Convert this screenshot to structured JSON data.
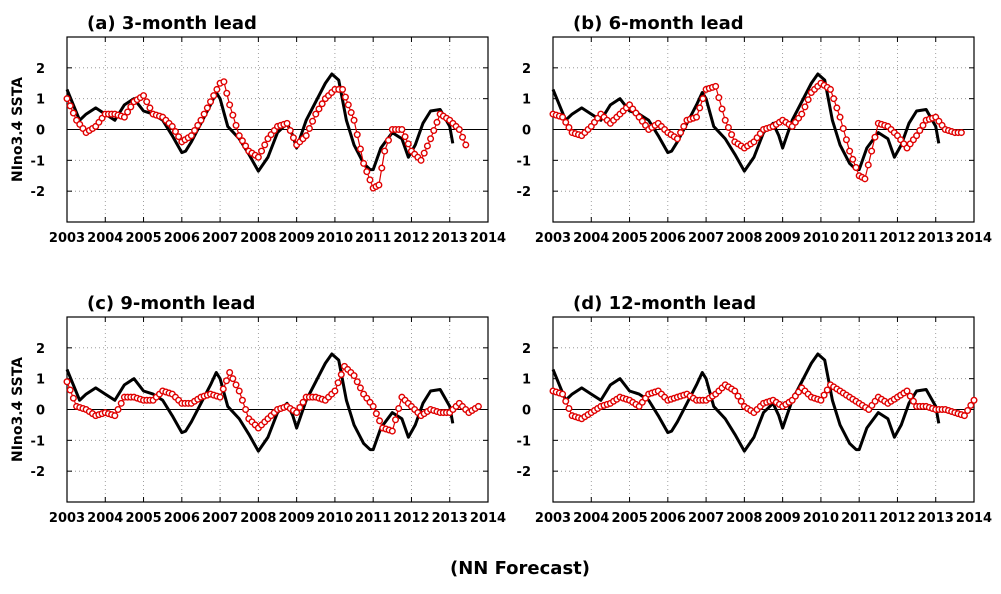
{
  "footer": "(NN Forecast)",
  "colors": {
    "observed": "#000000",
    "forecast": "#e00000",
    "grid": "#8a8a8a"
  },
  "chart_data": [
    {
      "type": "line",
      "title": "(a) 3-month lead",
      "ylabel": "NIno3.4 SSTA",
      "xlim": [
        2003,
        2014
      ],
      "ylim": [
        -3,
        3
      ],
      "xticks": [
        "2003",
        "2004",
        "2005",
        "2006",
        "2007",
        "2008",
        "2009",
        "2010",
        "2011",
        "2012",
        "2013",
        "2014"
      ],
      "yticks": [
        "-2",
        "-1",
        "0",
        "1",
        "2"
      ],
      "grid": true,
      "series": [
        {
          "style": "thick-black-line",
          "x": [
            2003.0,
            2003.33,
            2003.5,
            2003.75,
            2004.0,
            2004.25,
            2004.5,
            2004.75,
            2005.0,
            2005.25,
            2005.5,
            2005.75,
            2006.0,
            2006.1,
            2006.25,
            2006.5,
            2006.75,
            2006.9,
            2007.0,
            2007.2,
            2007.5,
            2007.75,
            2008.0,
            2008.25,
            2008.5,
            2008.75,
            2008.9,
            2009.0,
            2009.25,
            2009.5,
            2009.75,
            2009.92,
            2010.1,
            2010.3,
            2010.5,
            2010.75,
            2010.92,
            2011.0,
            2011.2,
            2011.5,
            2011.75,
            2011.92,
            2012.1,
            2012.3,
            2012.5,
            2012.75,
            2013.0,
            2013.08
          ],
          "y": [
            1.3,
            0.3,
            0.5,
            0.7,
            0.5,
            0.3,
            0.8,
            1.0,
            0.6,
            0.5,
            0.3,
            -0.2,
            -0.75,
            -0.7,
            -0.4,
            0.2,
            0.8,
            1.2,
            1.0,
            0.1,
            -0.3,
            -0.8,
            -1.35,
            -0.9,
            -0.1,
            0.2,
            -0.2,
            -0.6,
            0.3,
            0.9,
            1.5,
            1.8,
            1.6,
            0.3,
            -0.5,
            -1.1,
            -1.3,
            -1.3,
            -0.6,
            -0.1,
            -0.3,
            -0.9,
            -0.5,
            0.2,
            0.6,
            0.65,
            0.1,
            -0.45
          ]
        },
        {
          "style": "red-open-circles",
          "x": [
            2003.0,
            2003.25,
            2003.5,
            2003.75,
            2004.0,
            2004.25,
            2004.5,
            2004.75,
            2005.0,
            2005.25,
            2005.5,
            2005.75,
            2006.0,
            2006.25,
            2006.5,
            2006.75,
            2007.0,
            2007.1,
            2007.25,
            2007.5,
            2007.75,
            2008.0,
            2008.25,
            2008.5,
            2008.75,
            2009.0,
            2009.25,
            2009.5,
            2009.75,
            2010.0,
            2010.2,
            2010.5,
            2010.75,
            2011.0,
            2011.15,
            2011.3,
            2011.5,
            2011.75,
            2012.0,
            2012.25,
            2012.5,
            2012.75,
            2013.0,
            2013.25,
            2013.42
          ],
          "y": [
            1.0,
            0.3,
            -0.1,
            0.1,
            0.5,
            0.5,
            0.4,
            0.9,
            1.1,
            0.5,
            0.4,
            0.1,
            -0.4,
            -0.2,
            0.3,
            0.9,
            1.5,
            1.55,
            0.8,
            -0.2,
            -0.7,
            -0.9,
            -0.3,
            0.1,
            0.2,
            -0.5,
            -0.2,
            0.5,
            1.0,
            1.3,
            1.3,
            0.3,
            -1.1,
            -1.9,
            -1.8,
            -0.7,
            0.0,
            0.0,
            -0.7,
            -1.0,
            -0.3,
            0.5,
            0.3,
            0.0,
            -0.5
          ]
        }
      ]
    },
    {
      "type": "line",
      "title": "(b) 6-month lead",
      "ylabel": "",
      "xlim": [
        2003,
        2014
      ],
      "ylim": [
        -3,
        3
      ],
      "xticks": [
        "2003",
        "2004",
        "2005",
        "2006",
        "2007",
        "2008",
        "2009",
        "2010",
        "2011",
        "2012",
        "2013",
        "2014"
      ],
      "yticks": [
        "-2",
        "-1",
        "0",
        "1",
        "2"
      ],
      "grid": true,
      "series": [
        {
          "style": "thick-black-line",
          "x": [
            2003.0,
            2003.33,
            2003.5,
            2003.75,
            2004.0,
            2004.25,
            2004.5,
            2004.75,
            2005.0,
            2005.25,
            2005.5,
            2005.75,
            2006.0,
            2006.1,
            2006.25,
            2006.5,
            2006.75,
            2006.9,
            2007.0,
            2007.2,
            2007.5,
            2007.75,
            2008.0,
            2008.25,
            2008.5,
            2008.75,
            2008.9,
            2009.0,
            2009.25,
            2009.5,
            2009.75,
            2009.92,
            2010.1,
            2010.3,
            2010.5,
            2010.75,
            2010.92,
            2011.0,
            2011.2,
            2011.5,
            2011.75,
            2011.92,
            2012.1,
            2012.3,
            2012.5,
            2012.75,
            2013.0,
            2013.08
          ],
          "y": [
            1.3,
            0.3,
            0.5,
            0.7,
            0.5,
            0.3,
            0.8,
            1.0,
            0.6,
            0.5,
            0.3,
            -0.2,
            -0.75,
            -0.7,
            -0.4,
            0.2,
            0.8,
            1.2,
            1.0,
            0.1,
            -0.3,
            -0.8,
            -1.35,
            -0.9,
            -0.1,
            0.2,
            -0.2,
            -0.6,
            0.3,
            0.9,
            1.5,
            1.8,
            1.6,
            0.3,
            -0.5,
            -1.1,
            -1.3,
            -1.3,
            -0.6,
            -0.1,
            -0.3,
            -0.9,
            -0.5,
            0.2,
            0.6,
            0.65,
            0.1,
            -0.45
          ]
        },
        {
          "style": "red-open-circles",
          "x": [
            2003.0,
            2003.25,
            2003.5,
            2003.75,
            2004.0,
            2004.25,
            2004.5,
            2004.75,
            2005.0,
            2005.25,
            2005.5,
            2005.75,
            2006.0,
            2006.25,
            2006.5,
            2006.75,
            2007.0,
            2007.25,
            2007.5,
            2007.75,
            2008.0,
            2008.25,
            2008.5,
            2008.75,
            2009.0,
            2009.25,
            2009.5,
            2009.75,
            2010.0,
            2010.25,
            2010.5,
            2010.75,
            2011.0,
            2011.15,
            2011.5,
            2011.75,
            2012.0,
            2012.25,
            2012.5,
            2012.75,
            2013.0,
            2013.25,
            2013.5,
            2013.67
          ],
          "y": [
            0.5,
            0.4,
            -0.1,
            -0.2,
            0.1,
            0.5,
            0.2,
            0.5,
            0.8,
            0.4,
            0.0,
            0.2,
            -0.1,
            -0.3,
            0.3,
            0.4,
            1.3,
            1.4,
            0.3,
            -0.4,
            -0.6,
            -0.4,
            0.0,
            0.1,
            0.3,
            0.1,
            0.5,
            1.2,
            1.5,
            1.3,
            0.4,
            -0.7,
            -1.5,
            -1.6,
            0.2,
            0.1,
            -0.2,
            -0.6,
            -0.2,
            0.3,
            0.4,
            0.0,
            -0.1,
            -0.1
          ]
        }
      ]
    },
    {
      "type": "line",
      "title": "(c) 9-month lead",
      "ylabel": "NIno3.4 SSTA",
      "xlim": [
        2003,
        2014
      ],
      "ylim": [
        -3,
        3
      ],
      "xticks": [
        "2003",
        "2004",
        "2005",
        "2006",
        "2007",
        "2008",
        "2009",
        "2010",
        "2011",
        "2012",
        "2013",
        "2014"
      ],
      "yticks": [
        "-2",
        "-1",
        "0",
        "1",
        "2"
      ],
      "grid": true,
      "series": [
        {
          "style": "thick-black-line",
          "x": [
            2003.0,
            2003.33,
            2003.5,
            2003.75,
            2004.0,
            2004.25,
            2004.5,
            2004.75,
            2005.0,
            2005.25,
            2005.5,
            2005.75,
            2006.0,
            2006.1,
            2006.25,
            2006.5,
            2006.75,
            2006.9,
            2007.0,
            2007.2,
            2007.5,
            2007.75,
            2008.0,
            2008.25,
            2008.5,
            2008.75,
            2008.9,
            2009.0,
            2009.25,
            2009.5,
            2009.75,
            2009.92,
            2010.1,
            2010.3,
            2010.5,
            2010.75,
            2010.92,
            2011.0,
            2011.2,
            2011.5,
            2011.75,
            2011.92,
            2012.1,
            2012.3,
            2012.5,
            2012.75,
            2013.0,
            2013.08
          ],
          "y": [
            1.3,
            0.3,
            0.5,
            0.7,
            0.5,
            0.3,
            0.8,
            1.0,
            0.6,
            0.5,
            0.3,
            -0.2,
            -0.75,
            -0.7,
            -0.4,
            0.2,
            0.8,
            1.2,
            1.0,
            0.1,
            -0.3,
            -0.8,
            -1.35,
            -0.9,
            -0.1,
            0.2,
            -0.2,
            -0.6,
            0.3,
            0.9,
            1.5,
            1.8,
            1.6,
            0.3,
            -0.5,
            -1.1,
            -1.3,
            -1.3,
            -0.6,
            -0.1,
            -0.3,
            -0.9,
            -0.5,
            0.2,
            0.6,
            0.65,
            0.1,
            -0.45
          ]
        },
        {
          "style": "red-open-circles",
          "x": [
            2003.0,
            2003.25,
            2003.5,
            2003.75,
            2004.0,
            2004.25,
            2004.5,
            2004.75,
            2005.0,
            2005.25,
            2005.5,
            2005.75,
            2006.0,
            2006.25,
            2006.5,
            2006.75,
            2007.0,
            2007.25,
            2007.5,
            2007.75,
            2008.0,
            2008.25,
            2008.5,
            2008.75,
            2009.0,
            2009.25,
            2009.5,
            2009.75,
            2010.0,
            2010.25,
            2010.5,
            2010.75,
            2011.0,
            2011.25,
            2011.5,
            2011.75,
            2012.0,
            2012.25,
            2012.5,
            2012.75,
            2013.0,
            2013.25,
            2013.5,
            2013.75
          ],
          "y": [
            0.9,
            0.1,
            0.0,
            -0.2,
            -0.1,
            -0.2,
            0.4,
            0.4,
            0.3,
            0.3,
            0.6,
            0.5,
            0.2,
            0.2,
            0.4,
            0.5,
            0.4,
            1.2,
            0.6,
            -0.3,
            -0.6,
            -0.3,
            0.0,
            0.1,
            -0.1,
            0.4,
            0.4,
            0.3,
            0.6,
            1.4,
            1.1,
            0.5,
            0.1,
            -0.6,
            -0.7,
            0.4,
            0.1,
            -0.2,
            0.0,
            -0.1,
            -0.1,
            0.2,
            -0.1,
            0.1
          ]
        }
      ]
    },
    {
      "type": "line",
      "title": "(d) 12-month lead",
      "ylabel": "",
      "xlim": [
        2003,
        2014
      ],
      "ylim": [
        -3,
        3
      ],
      "xticks": [
        "2003",
        "2004",
        "2005",
        "2006",
        "2007",
        "2008",
        "2009",
        "2010",
        "2011",
        "2012",
        "2013",
        "2014"
      ],
      "yticks": [
        "-2",
        "-1",
        "0",
        "1",
        "2"
      ],
      "grid": true,
      "series": [
        {
          "style": "thick-black-line",
          "x": [
            2003.0,
            2003.33,
            2003.5,
            2003.75,
            2004.0,
            2004.25,
            2004.5,
            2004.75,
            2005.0,
            2005.25,
            2005.5,
            2005.75,
            2006.0,
            2006.1,
            2006.25,
            2006.5,
            2006.75,
            2006.9,
            2007.0,
            2007.2,
            2007.5,
            2007.75,
            2008.0,
            2008.25,
            2008.5,
            2008.75,
            2008.9,
            2009.0,
            2009.25,
            2009.5,
            2009.75,
            2009.92,
            2010.1,
            2010.3,
            2010.5,
            2010.75,
            2010.92,
            2011.0,
            2011.2,
            2011.5,
            2011.75,
            2011.92,
            2012.1,
            2012.3,
            2012.5,
            2012.75,
            2013.0,
            2013.08
          ],
          "y": [
            1.3,
            0.3,
            0.5,
            0.7,
            0.5,
            0.3,
            0.8,
            1.0,
            0.6,
            0.5,
            0.3,
            -0.2,
            -0.75,
            -0.7,
            -0.4,
            0.2,
            0.8,
            1.2,
            1.0,
            0.1,
            -0.3,
            -0.8,
            -1.35,
            -0.9,
            -0.1,
            0.2,
            -0.2,
            -0.6,
            0.3,
            0.9,
            1.5,
            1.8,
            1.6,
            0.3,
            -0.5,
            -1.1,
            -1.3,
            -1.3,
            -0.6,
            -0.1,
            -0.3,
            -0.9,
            -0.5,
            0.2,
            0.6,
            0.65,
            0.1,
            -0.45
          ]
        },
        {
          "style": "red-open-circles",
          "x": [
            2003.0,
            2003.25,
            2003.5,
            2003.75,
            2004.0,
            2004.25,
            2004.5,
            2004.75,
            2005.0,
            2005.25,
            2005.5,
            2005.75,
            2006.0,
            2006.25,
            2006.5,
            2006.75,
            2007.0,
            2007.25,
            2007.5,
            2007.75,
            2008.0,
            2008.25,
            2008.5,
            2008.75,
            2009.0,
            2009.25,
            2009.5,
            2009.75,
            2010.0,
            2010.25,
            2010.5,
            2010.75,
            2011.0,
            2011.25,
            2011.5,
            2011.75,
            2012.0,
            2012.25,
            2012.5,
            2012.75,
            2013.0,
            2013.25,
            2013.5,
            2013.75,
            2014.0
          ],
          "y": [
            0.6,
            0.5,
            -0.2,
            -0.3,
            -0.1,
            0.1,
            0.2,
            0.4,
            0.3,
            0.1,
            0.5,
            0.6,
            0.3,
            0.4,
            0.5,
            0.3,
            0.3,
            0.5,
            0.8,
            0.6,
            0.1,
            -0.1,
            0.2,
            0.3,
            0.1,
            0.3,
            0.7,
            0.4,
            0.3,
            0.8,
            0.6,
            0.4,
            0.2,
            0.0,
            0.4,
            0.2,
            0.4,
            0.6,
            0.1,
            0.1,
            0.0,
            0.0,
            -0.1,
            -0.2,
            0.3
          ]
        }
      ]
    }
  ]
}
